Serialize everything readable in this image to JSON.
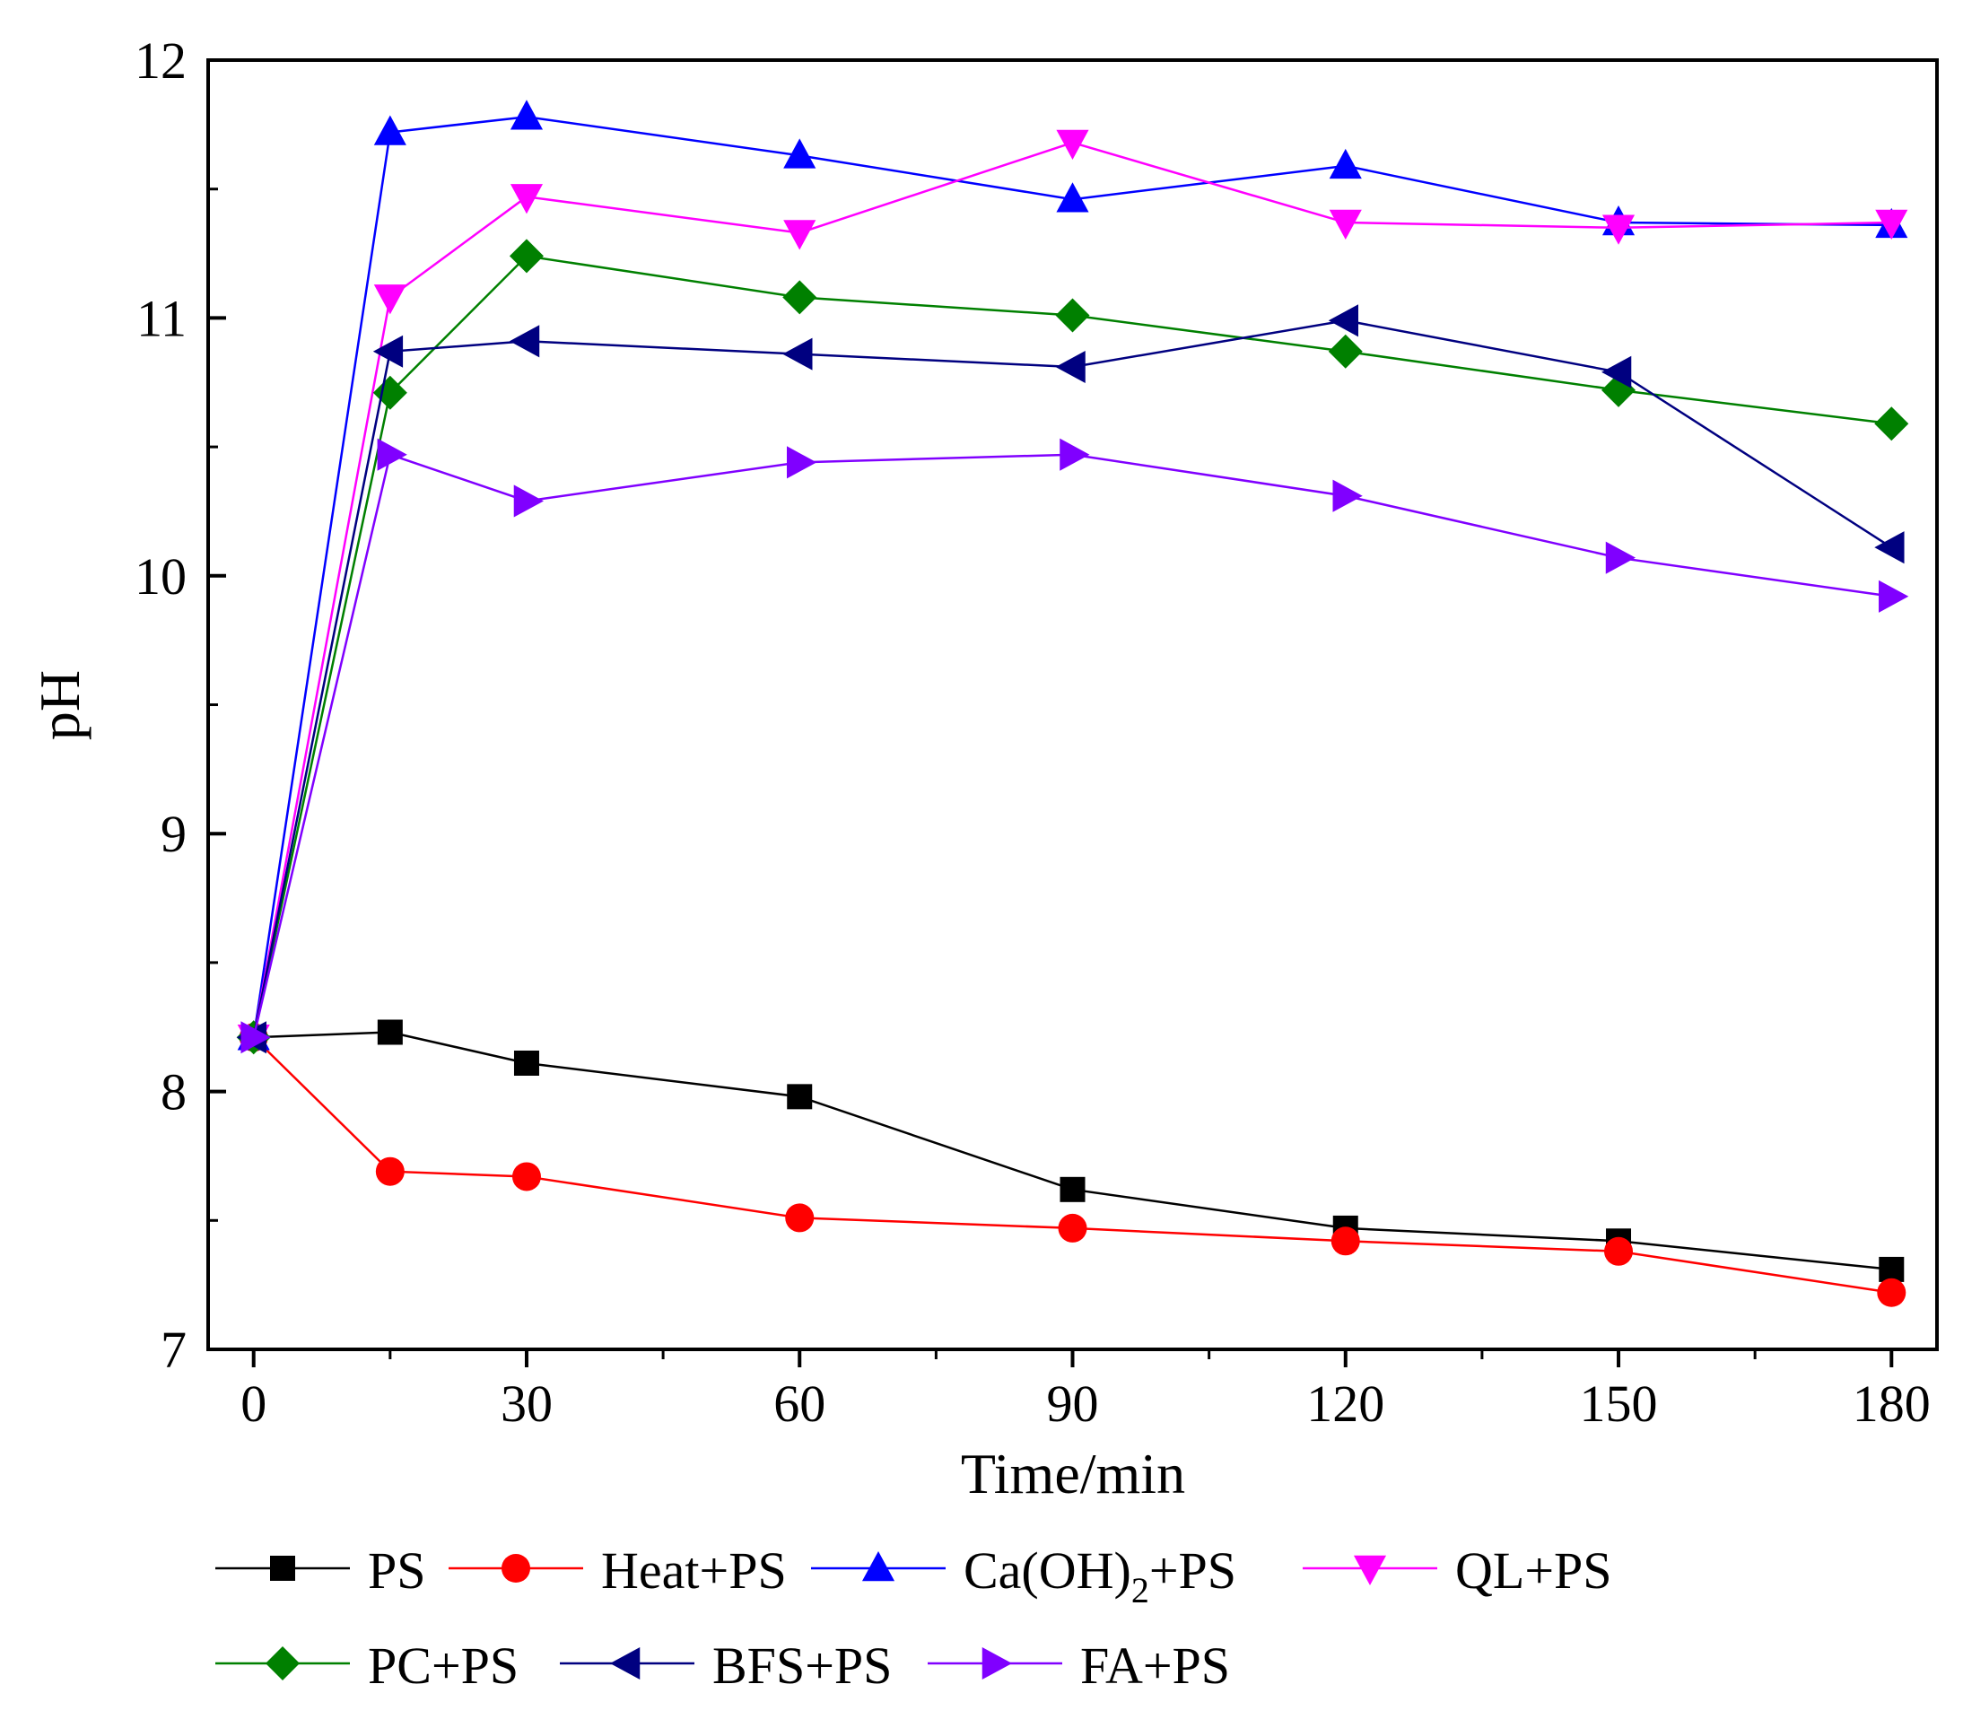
{
  "chart_data": {
    "type": "line",
    "xlabel": "Time/min",
    "ylabel": "pH",
    "xlim": [
      -5,
      185
    ],
    "ylim": [
      7,
      12
    ],
    "xticks": [
      0,
      30,
      60,
      90,
      120,
      150,
      180
    ],
    "yticks": [
      7,
      8,
      9,
      10,
      11,
      12
    ],
    "x": [
      0,
      15,
      30,
      60,
      90,
      120,
      150,
      180
    ],
    "legend_position": "bottom",
    "series": [
      {
        "name": "PS",
        "label_parts": [
          "PS"
        ],
        "color": "#000000",
        "marker": "square",
        "values": [
          8.21,
          8.23,
          8.11,
          7.98,
          7.62,
          7.47,
          7.42,
          7.31
        ]
      },
      {
        "name": "Heat+PS",
        "label_parts": [
          "Heat+PS"
        ],
        "color": "#ff0000",
        "marker": "circle",
        "values": [
          8.21,
          7.69,
          7.67,
          7.51,
          7.47,
          7.42,
          7.38,
          7.22
        ]
      },
      {
        "name": "Ca(OH)2+PS",
        "label_parts": [
          "Ca(OH)",
          "2",
          "+PS"
        ],
        "color": "#0000ff",
        "marker": "triangle-up",
        "values": [
          8.21,
          11.72,
          11.78,
          11.63,
          11.46,
          11.59,
          11.37,
          11.36
        ]
      },
      {
        "name": "QL+PS",
        "label_parts": [
          "QL+PS"
        ],
        "color": "#ff00ff",
        "marker": "triangle-down",
        "values": [
          8.21,
          11.08,
          11.47,
          11.33,
          11.68,
          11.37,
          11.35,
          11.37
        ]
      },
      {
        "name": "PC+PS",
        "label_parts": [
          "PC+PS"
        ],
        "color": "#008000",
        "marker": "diamond",
        "values": [
          8.21,
          10.71,
          11.24,
          11.08,
          11.01,
          10.87,
          10.72,
          10.59
        ]
      },
      {
        "name": "BFS+PS",
        "label_parts": [
          "BFS+PS"
        ],
        "color": "#000080",
        "marker": "triangle-left",
        "values": [
          8.21,
          10.87,
          10.91,
          10.86,
          10.81,
          10.99,
          10.79,
          10.11
        ]
      },
      {
        "name": "FA+PS",
        "label_parts": [
          "FA+PS"
        ],
        "color": "#8000ff",
        "marker": "triangle-right",
        "values": [
          8.21,
          10.47,
          10.29,
          10.44,
          10.47,
          10.31,
          10.07,
          9.92
        ]
      }
    ]
  }
}
